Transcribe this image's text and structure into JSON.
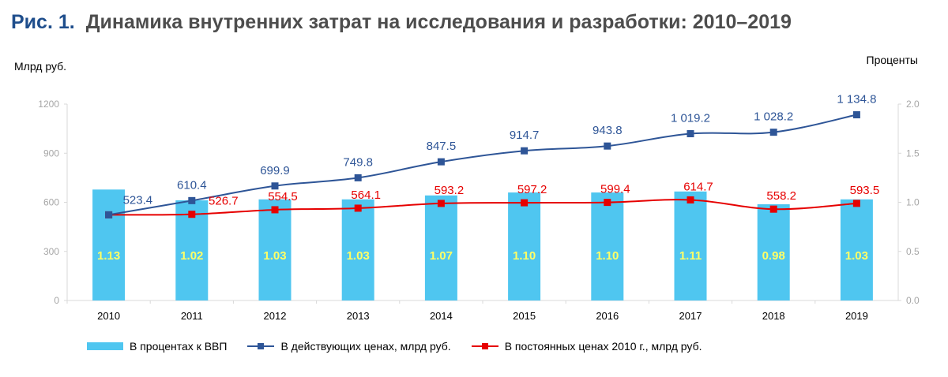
{
  "figure": {
    "number": "Рис. 1.",
    "title": "Динамика внутренних затрат на исследования и разработки: 2010–2019"
  },
  "colors": {
    "bar": "#4fc6f0",
    "bar_label": "#ffff66",
    "current_prices": "#2e5597",
    "constant_prices": "#e60000",
    "axis_text": "#a6a6a6",
    "axis_line": "#d9d9d9"
  },
  "chart_data": {
    "type": "bar",
    "title": "Динамика внутренних затрат на исследования и разработки: 2010–2019",
    "ylabel": "Млрд руб.",
    "y2label": "Проценты",
    "categories": [
      "2010",
      "2011",
      "2012",
      "2013",
      "2014",
      "2015",
      "2016",
      "2017",
      "2018",
      "2019"
    ],
    "ylim": [
      0,
      1200
    ],
    "yticks": [
      "0",
      "300",
      "600",
      "900",
      "1200"
    ],
    "y2lim": [
      0,
      2.0
    ],
    "y2ticks": [
      "0.0",
      "0.5",
      "1.0",
      "1.5",
      "2.0"
    ],
    "grid": false,
    "legend_position": "bottom",
    "series": [
      {
        "name": "В процентах к ВВП",
        "kind": "bar",
        "axis": "right",
        "values": [
          1.13,
          1.02,
          1.03,
          1.03,
          1.07,
          1.1,
          1.1,
          1.11,
          0.98,
          1.03
        ],
        "labels": [
          "1.13",
          "1.02",
          "1.03",
          "1.03",
          "1.07",
          "1.10",
          "1.10",
          "1.11",
          "0.98",
          "1.03"
        ]
      },
      {
        "name": "В действующих ценах, млрд руб.",
        "kind": "line",
        "axis": "left",
        "values": [
          523.4,
          610.4,
          699.9,
          749.8,
          847.5,
          914.7,
          943.8,
          1019.2,
          1028.2,
          1134.8
        ],
        "labels": [
          "523.4",
          "610.4",
          "699.9",
          "749.8",
          "847.5",
          "914.7",
          "943.8",
          "1 019.2",
          "1 028.2",
          "1 134.8"
        ]
      },
      {
        "name": "В постоянных ценах 2010 г., млрд руб.",
        "kind": "line",
        "axis": "left",
        "values": [
          523.4,
          526.7,
          554.5,
          564.1,
          593.2,
          597.2,
          599.4,
          614.7,
          558.2,
          593.5
        ],
        "labels": [
          "",
          "526.7",
          "554.5",
          "564.1",
          "593.2",
          "597.2",
          "599.4",
          "614.7",
          "558.2",
          "593.5"
        ]
      }
    ]
  },
  "legend": {
    "bar": "В процентах к ВВП",
    "current": "В действующих ценах, млрд руб.",
    "constant": "В постоянных ценах 2010 г., млрд руб."
  }
}
